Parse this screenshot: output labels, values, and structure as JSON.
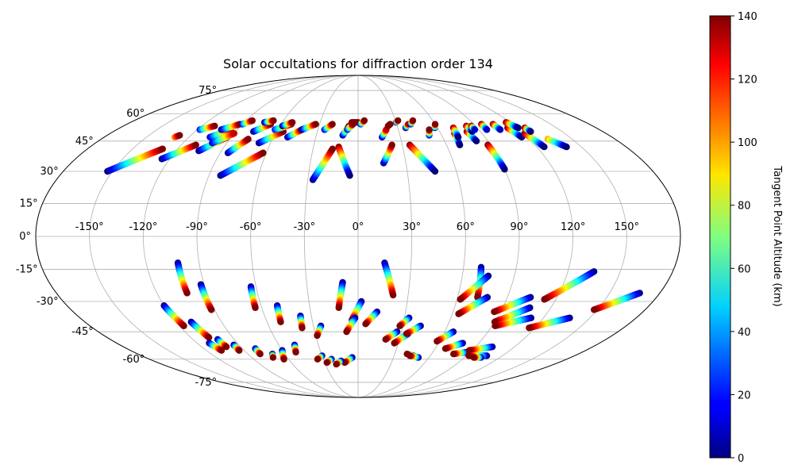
{
  "chart_data": {
    "type": "scatter",
    "projection": "mollweide",
    "title": "Solar occultations for diffraction order 134",
    "longitude_ticks": [
      -150,
      -120,
      -90,
      -60,
      -30,
      0,
      30,
      60,
      90,
      120,
      150
    ],
    "longitude_tick_labels": [
      "-150°",
      "-120°",
      "-90°",
      "-60°",
      "-30°",
      "0°",
      "30°",
      "60°",
      "90°",
      "120°",
      "150°"
    ],
    "latitude_ticks": [
      75,
      60,
      45,
      30,
      15,
      0,
      -15,
      -30,
      -45,
      -60,
      -75
    ],
    "latitude_tick_labels": [
      "75°",
      "60°",
      "45°",
      "30°",
      "15°",
      "0°",
      "-15°",
      "-30°",
      "-45°",
      "-60°",
      "-75°"
    ],
    "grid": true,
    "colorbar": {
      "label": "Tangent Point Altitude (km)",
      "colormap": "jet",
      "range": [
        0,
        140
      ],
      "ticks": [
        0,
        20,
        40,
        60,
        80,
        100,
        120,
        140
      ],
      "tick_labels": [
        "0",
        "20",
        "40",
        "60",
        "80",
        "100",
        "120",
        "140"
      ]
    },
    "tracks": [
      {
        "lon0": -153,
        "lat0": 30,
        "lon1": -130,
        "lat1": 41,
        "alt0": 0,
        "alt1": 140
      },
      {
        "lon0": -130,
        "lat0": 47,
        "lon1": -128,
        "lat1": 48,
        "alt0": 100,
        "alt1": 140
      },
      {
        "lon0": -125,
        "lat0": 36,
        "lon1": -110,
        "lat1": 43,
        "alt0": 0,
        "alt1": 140
      },
      {
        "lon0": -118,
        "lat0": 51,
        "lon1": -110,
        "lat1": 53,
        "alt0": 20,
        "alt1": 140
      },
      {
        "lon0": -105,
        "lat0": 47,
        "lon1": -95,
        "lat1": 51,
        "alt0": 10,
        "alt1": 130
      },
      {
        "lon0": -105,
        "lat0": 40,
        "lon1": -93,
        "lat1": 47,
        "alt0": 0,
        "alt1": 140
      },
      {
        "lon0": -102,
        "lat0": 51,
        "lon1": -92,
        "lat1": 54,
        "alt0": 0,
        "alt1": 140
      },
      {
        "lon0": -100,
        "lat0": 44,
        "lon1": -90,
        "lat1": 49,
        "alt0": 10,
        "alt1": 130
      },
      {
        "lon0": -90,
        "lat0": 54,
        "lon1": -85,
        "lat1": 56,
        "alt0": 20,
        "alt1": 140
      },
      {
        "lon0": -85,
        "lat0": 39,
        "lon1": -77,
        "lat1": 46,
        "alt0": 0,
        "alt1": 140
      },
      {
        "lon0": -83,
        "lat0": 28,
        "lon1": -62,
        "lat1": 39,
        "alt0": 0,
        "alt1": 140
      },
      {
        "lon0": -77,
        "lat0": 50,
        "lon1": -68,
        "lat1": 54,
        "alt0": 0,
        "alt1": 140
      },
      {
        "lon0": -74,
        "lat0": 55,
        "lon1": -68,
        "lat1": 56,
        "alt0": 0,
        "alt1": 140
      },
      {
        "lon0": -68,
        "lat0": 44,
        "lon1": -55,
        "lat1": 50,
        "alt0": 0,
        "alt1": 140
      },
      {
        "lon0": -62,
        "lat0": 51,
        "lon1": -52,
        "lat1": 54,
        "alt0": 20,
        "alt1": 140
      },
      {
        "lon0": -58,
        "lat0": 53,
        "lon1": -52,
        "lat1": 55,
        "alt0": 0,
        "alt1": 140
      },
      {
        "lon0": -50,
        "lat0": 47,
        "lon1": -42,
        "lat1": 51,
        "alt0": 0,
        "alt1": 140
      },
      {
        "lon0": -42,
        "lat0": 51,
        "lon1": -33,
        "lat1": 54,
        "alt0": 0,
        "alt1": 140
      },
      {
        "lon0": -25,
        "lat0": 51,
        "lon1": -20,
        "lat1": 54,
        "alt0": 10,
        "alt1": 140
      },
      {
        "lon0": -27,
        "lat0": 26,
        "lon1": -17,
        "lat1": 41,
        "alt0": 0,
        "alt1": 140
      },
      {
        "lon0": -13,
        "lat0": 42,
        "lon1": -5,
        "lat1": 28,
        "alt0": 140,
        "alt1": 0
      },
      {
        "lon0": -11,
        "lat0": 48,
        "lon1": -7,
        "lat1": 53,
        "alt0": 0,
        "alt1": 140
      },
      {
        "lon0": -8,
        "lat0": 51,
        "lon1": -4,
        "lat1": 54,
        "alt0": 10,
        "alt1": 140
      },
      {
        "lon0": -5,
        "lat0": 55,
        "lon1": 0,
        "lat1": 55,
        "alt0": 140,
        "alt1": 140
      },
      {
        "lon0": 2,
        "lat0": 54,
        "lon1": 5,
        "lat1": 56,
        "alt0": 20,
        "alt1": 140
      },
      {
        "lon0": 16,
        "lat0": 34,
        "lon1": 23,
        "lat1": 43,
        "alt0": 0,
        "alt1": 140
      },
      {
        "lon0": 17,
        "lat0": 47,
        "lon1": 21,
        "lat1": 51,
        "alt0": 0,
        "alt1": 130
      },
      {
        "lon0": 23,
        "lat0": 53,
        "lon1": 25,
        "lat1": 54,
        "alt0": 140,
        "alt1": 140
      },
      {
        "lon0": 30,
        "lat0": 55,
        "lon1": 32,
        "lat1": 56,
        "alt0": 20,
        "alt1": 140
      },
      {
        "lon0": 35,
        "lat0": 43,
        "lon1": 47,
        "lat1": 30,
        "alt0": 140,
        "alt1": 0
      },
      {
        "lon0": 36,
        "lat0": 52,
        "lon1": 39,
        "lat1": 54,
        "alt0": 0,
        "alt1": 130
      },
      {
        "lon0": 41,
        "lat0": 54,
        "lon1": 44,
        "lat1": 56,
        "alt0": 10,
        "alt1": 140
      },
      {
        "lon0": 51,
        "lat0": 48,
        "lon1": 53,
        "lat1": 51,
        "alt0": 10,
        "alt1": 140
      },
      {
        "lon0": 58,
        "lat0": 52,
        "lon1": 60,
        "lat1": 54,
        "alt0": 20,
        "alt1": 140
      },
      {
        "lon0": 70,
        "lat0": 49,
        "lon1": 69,
        "lat1": 43,
        "alt0": 140,
        "alt1": 0
      },
      {
        "lon0": 72,
        "lat0": 52,
        "lon1": 71,
        "lat1": 47,
        "alt0": 140,
        "alt1": 0
      },
      {
        "lon0": 80,
        "lat0": 50,
        "lon1": 82,
        "lat1": 45,
        "alt0": 140,
        "alt1": 0
      },
      {
        "lon0": 83,
        "lat0": 53,
        "lon1": 84,
        "lat1": 50,
        "alt0": 140,
        "alt1": 0
      },
      {
        "lon0": 87,
        "lat0": 53,
        "lon1": 87,
        "lat1": 51,
        "alt0": 140,
        "alt1": 10
      },
      {
        "lon0": 88,
        "lat0": 43,
        "lon1": 90,
        "lat1": 31,
        "alt0": 140,
        "alt1": 0
      },
      {
        "lon0": 96,
        "lat0": 54,
        "lon1": 96,
        "lat1": 51,
        "alt0": 140,
        "alt1": 10
      },
      {
        "lon0": 105,
        "lat0": 54,
        "lon1": 106,
        "lat1": 51,
        "alt0": 140,
        "alt1": 10
      },
      {
        "lon0": 113,
        "lat0": 52,
        "lon1": 116,
        "lat1": 47,
        "alt0": 140,
        "alt1": 0
      },
      {
        "lon0": 117,
        "lat0": 55,
        "lon1": 121,
        "lat1": 52,
        "alt0": 140,
        "alt1": 0
      },
      {
        "lon0": 121,
        "lat0": 49,
        "lon1": 125,
        "lat1": 42,
        "alt0": 140,
        "alt1": 0
      },
      {
        "lon0": 126,
        "lat0": 52,
        "lon1": 127,
        "lat1": 50,
        "alt0": 140,
        "alt1": 0
      },
      {
        "lon0": 133,
        "lat0": 46,
        "lon1": 140,
        "lat1": 42,
        "alt0": 100,
        "alt1": 0
      },
      {
        "lon0": -120,
        "lat0": -32,
        "lon1": -117,
        "lat1": -42,
        "alt0": 0,
        "alt1": 140
      },
      {
        "lon0": -110,
        "lat0": -40,
        "lon1": -107,
        "lat1": -48,
        "alt0": 0,
        "alt1": 140
      },
      {
        "lon0": -102,
        "lat0": -49,
        "lon1": -101,
        "lat1": -53,
        "alt0": 0,
        "alt1": 140
      },
      {
        "lon0": -111,
        "lat0": -51,
        "lon1": -108,
        "lat1": -55,
        "alt0": 0,
        "alt1": 140
      },
      {
        "lon0": -102,
        "lat0": -12,
        "lon1": -102,
        "lat1": -26,
        "alt0": 0,
        "alt1": 140
      },
      {
        "lon0": -92,
        "lat0": -22,
        "lon1": -92,
        "lat1": -34,
        "alt0": 0,
        "alt1": 140
      },
      {
        "lon0": -94,
        "lat0": -52,
        "lon1": -94,
        "lat1": -55,
        "alt0": 0,
        "alt1": 140
      },
      {
        "lon0": -80,
        "lat0": -54,
        "lon1": -80,
        "lat1": -57,
        "alt0": 0,
        "alt1": 140
      },
      {
        "lon0": -70,
        "lat0": -57,
        "lon1": -72,
        "lat1": -59,
        "alt0": 0,
        "alt1": 140
      },
      {
        "lon0": -63,
        "lat0": -23,
        "lon1": -64,
        "lat1": -33,
        "alt0": 0,
        "alt1": 140
      },
      {
        "lon0": -60,
        "lat0": -55,
        "lon1": -64,
        "lat1": -60,
        "alt0": 0,
        "alt1": 140
      },
      {
        "lon0": -50,
        "lat0": -32,
        "lon1": -51,
        "lat1": -40,
        "alt0": 0,
        "alt1": 140
      },
      {
        "lon0": -48,
        "lat0": -52,
        "lon1": -50,
        "lat1": -56,
        "alt0": 0,
        "alt1": 140
      },
      {
        "lon0": -37,
        "lat0": -37,
        "lon1": -38,
        "lat1": -43,
        "alt0": 0,
        "alt1": 140
      },
      {
        "lon0": -30,
        "lat0": -58,
        "lon1": -35,
        "lat1": -60,
        "alt0": 0,
        "alt1": 140
      },
      {
        "lon0": -25,
        "lat0": -42,
        "lon1": -29,
        "lat1": -47,
        "alt0": 0,
        "alt1": 140
      },
      {
        "lon0": -23,
        "lat0": -60,
        "lon1": -28,
        "lat1": -62,
        "alt0": 0,
        "alt1": 140
      },
      {
        "lon0": -9,
        "lat0": -21,
        "lon1": -12,
        "lat1": -33,
        "alt0": 0,
        "alt1": 140
      },
      {
        "lon0": 2,
        "lat0": -30,
        "lon1": -4,
        "lat1": -39,
        "alt0": 0,
        "alt1": 140
      },
      {
        "lon0": -2,
        "lat0": -38,
        "lon1": -8,
        "lat1": -45,
        "alt0": 0,
        "alt1": 140
      },
      {
        "lon0": -5,
        "lat0": -59,
        "lon1": -12,
        "lat1": -62,
        "alt0": 0,
        "alt1": 140
      },
      {
        "lon0": -15,
        "lat0": -61,
        "lon1": -20,
        "lat1": -63,
        "alt0": 0,
        "alt1": 140
      },
      {
        "lon0": 12,
        "lat0": -35,
        "lon1": 5,
        "lat1": -41,
        "alt0": 0,
        "alt1": 140
      },
      {
        "lon0": 15,
        "lat0": -12,
        "lon1": 21,
        "lat1": -27,
        "alt0": 0,
        "alt1": 140
      },
      {
        "lon0": 27,
        "lat0": -45,
        "lon1": 20,
        "lat1": -49,
        "alt0": 0,
        "alt1": 140
      },
      {
        "lon0": 33,
        "lat0": -38,
        "lon1": 28,
        "lat1": -42,
        "alt0": 0,
        "alt1": 140
      },
      {
        "lon0": 35,
        "lat0": -46,
        "lon1": 27,
        "lat1": -51,
        "alt0": 0,
        "alt1": 140
      },
      {
        "lon0": 42,
        "lat0": -42,
        "lon1": 34,
        "lat1": -46,
        "alt0": 0,
        "alt1": 140
      },
      {
        "lon0": 46,
        "lat0": -58,
        "lon1": 40,
        "lat1": -57,
        "alt0": 0,
        "alt1": 140
      },
      {
        "lon0": 51,
        "lat0": -59,
        "lon1": 43,
        "lat1": -58,
        "alt0": 0,
        "alt1": 140
      },
      {
        "lon0": 66,
        "lat0": -45,
        "lon1": 58,
        "lat1": -50,
        "alt0": 0,
        "alt1": 140
      },
      {
        "lon0": 70,
        "lat0": -14,
        "lon1": 72,
        "lat1": -28,
        "alt0": 0,
        "alt1": 140
      },
      {
        "lon0": 75,
        "lat0": -18,
        "lon1": 62,
        "lat1": -29,
        "alt0": 0,
        "alt1": 140
      },
      {
        "lon0": 78,
        "lat0": -28,
        "lon1": 64,
        "lat1": -36,
        "alt0": 0,
        "alt1": 140
      },
      {
        "lon0": 78,
        "lat0": -51,
        "lon1": 68,
        "lat1": -54,
        "alt0": 0,
        "alt1": 140
      },
      {
        "lon0": 87,
        "lat0": -56,
        "lon1": 78,
        "lat1": -57,
        "alt0": 0,
        "alt1": 140
      },
      {
        "lon0": 104,
        "lat0": -28,
        "lon1": 86,
        "lat1": -35,
        "alt0": 0,
        "alt1": 140
      },
      {
        "lon0": 107,
        "lat0": -33,
        "lon1": 90,
        "lat1": -40,
        "alt0": 0,
        "alt1": 140
      },
      {
        "lon0": 112,
        "lat0": -38,
        "lon1": 92,
        "lat1": -42,
        "alt0": 0,
        "alt1": 140
      },
      {
        "lon0": 103,
        "lat0": -53,
        "lon1": 88,
        "lat1": -55,
        "alt0": 0,
        "alt1": 140
      },
      {
        "lon0": 107,
        "lat0": -58,
        "lon1": 92,
        "lat1": -58,
        "alt0": 0,
        "alt1": 140
      },
      {
        "lon0": 104,
        "lat0": -59,
        "lon1": 98,
        "lat1": -59,
        "alt0": 0,
        "alt1": 140
      },
      {
        "lon0": 135,
        "lat0": -16,
        "lon1": 113,
        "lat1": -29,
        "alt0": 0,
        "alt1": 140
      },
      {
        "lon0": 137,
        "lat0": -38,
        "lon1": 116,
        "lat1": -43,
        "alt0": 0,
        "alt1": 140
      },
      {
        "lon0": 168,
        "lat0": -26,
        "lon1": 148,
        "lat1": -34,
        "alt0": 0,
        "alt1": 140
      }
    ]
  }
}
